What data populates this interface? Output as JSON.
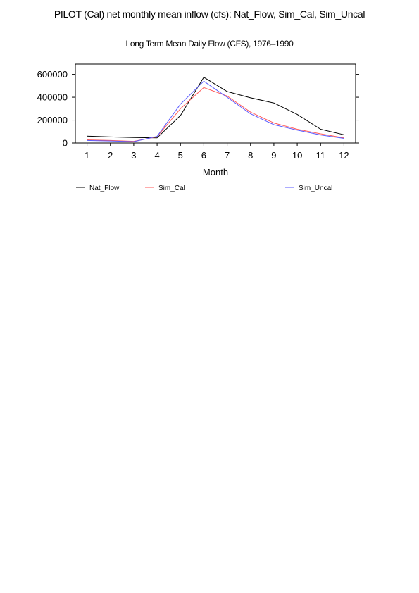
{
  "header": {
    "title": "PILOT (Cal) net monthly mean inflow (cfs): Nat_Flow, Sim_Cal, Sim_Uncal"
  },
  "chart_data": {
    "type": "line",
    "title": "Long Term Mean Daily Flow (CFS), 1976–1990",
    "xlabel": "Month",
    "ylabel": "",
    "x": [
      1,
      2,
      3,
      4,
      5,
      6,
      7,
      8,
      9,
      10,
      11,
      12
    ],
    "xlim": [
      0.5,
      12.5
    ],
    "ylim": [
      0,
      690000
    ],
    "yticks": [
      0,
      200000,
      400000,
      600000
    ],
    "grid": false,
    "legend_position": "bottom",
    "series": [
      {
        "name": "Nat_Flow",
        "color": "#000000",
        "values": [
          60000,
          53000,
          48000,
          45000,
          240000,
          575000,
          450000,
          395000,
          350000,
          250000,
          120000,
          72000
        ]
      },
      {
        "name": "Sim_Cal",
        "color": "#ff5a5a",
        "values": [
          28000,
          22000,
          15000,
          55000,
          300000,
          485000,
          410000,
          270000,
          175000,
          120000,
          80000,
          45000
        ]
      },
      {
        "name": "Sim_Uncal",
        "color": "#5a5aff",
        "values": [
          22000,
          18000,
          12000,
          58000,
          340000,
          540000,
          400000,
          255000,
          160000,
          112000,
          70000,
          40000
        ]
      }
    ]
  }
}
